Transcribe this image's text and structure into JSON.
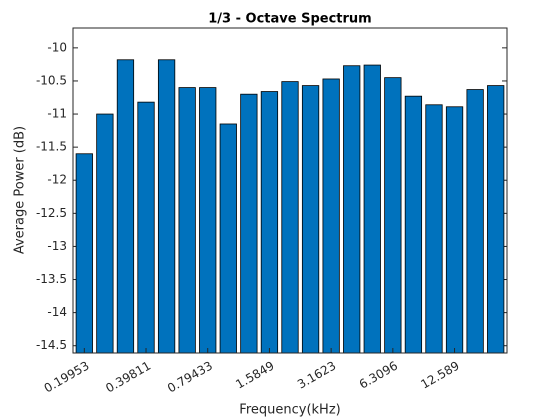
{
  "chart_data": {
    "type": "bar",
    "title": "1/3 - Octave Spectrum",
    "xlabel": "Frequency(kHz)",
    "ylabel": "Average Power (dB)",
    "categories": [
      "0.19953",
      null,
      null,
      "0.39811",
      null,
      null,
      "0.79433",
      null,
      null,
      "1.5849",
      null,
      null,
      "3.1623",
      null,
      null,
      "6.3096",
      null,
      null,
      "12.589",
      null,
      null
    ],
    "values": [
      -11.6,
      -11.0,
      -10.18,
      -10.82,
      -10.18,
      -10.6,
      -10.6,
      -11.15,
      -10.7,
      -10.66,
      -10.51,
      -10.57,
      -10.47,
      -10.27,
      -10.26,
      -10.45,
      -10.73,
      -10.86,
      -10.89,
      -10.63,
      -10.57
    ],
    "color": "#0072bd",
    "ylim": [
      -14.61,
      -9.7
    ],
    "yticks": [
      -14.5,
      -14,
      -13.5,
      -13,
      -12.5,
      -12,
      -11.5,
      -11,
      -10.5,
      -10
    ]
  }
}
